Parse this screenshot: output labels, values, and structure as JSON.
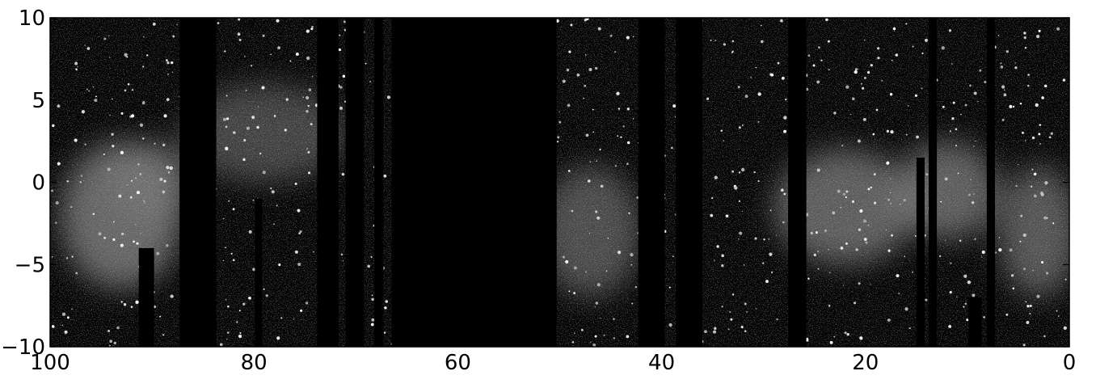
{
  "chart_data": {
    "type": "heatmap",
    "title": "",
    "xlabel": "",
    "ylabel": "",
    "xlim": [
      100,
      0
    ],
    "ylim": [
      -10,
      10
    ],
    "colormap": "gray",
    "x_ticks": [
      100,
      80,
      60,
      40,
      20,
      0
    ],
    "x_tick_labels": [
      "100",
      "80",
      "60",
      "40",
      "20",
      "0"
    ],
    "y_ticks": [
      -10,
      -5,
      0,
      5,
      10
    ],
    "y_tick_labels": [
      "−10",
      "−5",
      "0",
      "5",
      "10"
    ],
    "grid": false,
    "masked_columns": [
      {
        "x_start": 87.3,
        "x_end": 83.7
      },
      {
        "x_start": 73.8,
        "x_end": 71.7
      },
      {
        "x_start": 71.0,
        "x_end": 69.2
      },
      {
        "x_start": 68.2,
        "x_end": 67.3
      },
      {
        "x_start": 66.5,
        "x_end": 50.3
      },
      {
        "x_start": 42.3,
        "x_end": 39.7
      },
      {
        "x_start": 38.6,
        "x_end": 36.0
      },
      {
        "x_start": 27.6,
        "x_end": 25.8
      },
      {
        "x_start": 13.8,
        "x_end": 13.0
      },
      {
        "x_start": 8.1,
        "x_end": 7.3
      }
    ],
    "partial_columns": [
      {
        "x_start": 91.3,
        "x_end": 89.8,
        "y_top": -4
      },
      {
        "x_start": 79.9,
        "x_end": 79.2,
        "y_top": -1
      },
      {
        "x_start": 15.0,
        "x_end": 14.2,
        "y_top": 1.5
      },
      {
        "x_start": 9.9,
        "x_end": 8.6,
        "y_top": -7
      }
    ],
    "bright_regions": [
      {
        "x": 93,
        "y": -2,
        "rx": 6,
        "ry": 4.5,
        "intensity": 0.55
      },
      {
        "x": 90,
        "y": 0,
        "rx": 4,
        "ry": 2.5,
        "intensity": 0.45
      },
      {
        "x": 79,
        "y": 3,
        "rx": 8,
        "ry": 3,
        "intensity": 0.35
      },
      {
        "x": 47,
        "y": -3,
        "rx": 5,
        "ry": 4,
        "intensity": 0.4
      },
      {
        "x": 22,
        "y": -1.5,
        "rx": 7,
        "ry": 3.5,
        "intensity": 0.5
      },
      {
        "x": 12,
        "y": -0.5,
        "rx": 5,
        "ry": 3,
        "intensity": 0.5
      },
      {
        "x": 3,
        "y": -3,
        "rx": 4,
        "ry": 4,
        "intensity": 0.45
      }
    ]
  }
}
